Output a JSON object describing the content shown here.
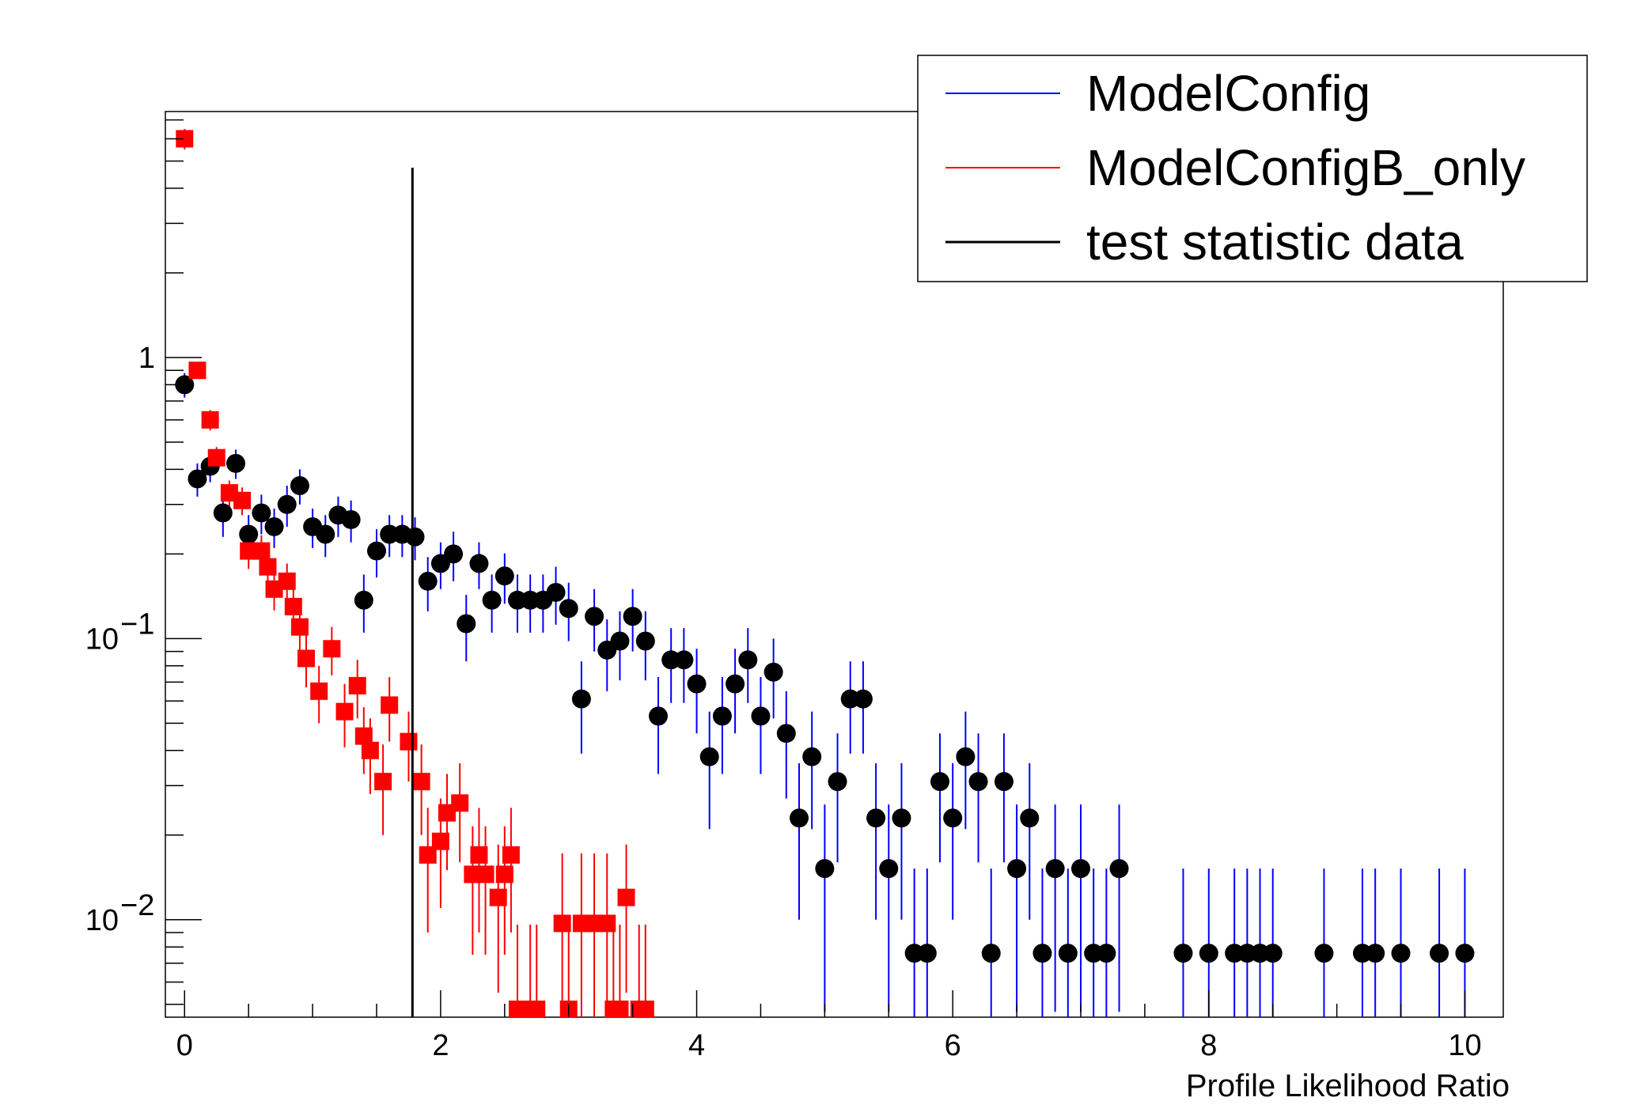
{
  "chart_data": {
    "type": "scatter",
    "title": "",
    "xlabel": "Profile Likelihood Ratio",
    "ylabel": "",
    "xlim": [
      -0.15,
      10.3
    ],
    "ylim": [
      0.0045,
      7.5
    ],
    "yscale": "log",
    "grid": false,
    "legend_position": "top-right",
    "x_ticks": [
      "0",
      "2",
      "4",
      "6",
      "8",
      "10"
    ],
    "y_ticks": [
      {
        "value": 0.01,
        "base": "10",
        "exp": "−2"
      },
      {
        "value": 0.1,
        "base": "10",
        "exp": "−1"
      },
      {
        "value": 1,
        "base": "1",
        "exp": ""
      }
    ],
    "legend": [
      {
        "name": "ModelConfig",
        "color": "#0000ff"
      },
      {
        "name": "ModelConfigB_only",
        "color": "#ff0000"
      },
      {
        "name": "test statistic data",
        "color": "#000000"
      }
    ],
    "test_statistic_data": 1.78,
    "series": [
      {
        "name": "ModelConfig",
        "marker": "circle",
        "marker_color": "#000000",
        "error_color": "#0000ff",
        "x": [
          0.0,
          0.1,
          0.2,
          0.3,
          0.4,
          0.5,
          0.6,
          0.7,
          0.8,
          0.9,
          1.0,
          1.1,
          1.2,
          1.3,
          1.4,
          1.5,
          1.6,
          1.7,
          1.8,
          1.9,
          2.0,
          2.1,
          2.2,
          2.3,
          2.4,
          2.5,
          2.6,
          2.7,
          2.8,
          2.9,
          3.0,
          3.1,
          3.2,
          3.3,
          3.4,
          3.5,
          3.6,
          3.7,
          3.8,
          3.9,
          4.0,
          4.1,
          4.2,
          4.3,
          4.4,
          4.5,
          4.6,
          4.7,
          4.8,
          4.9,
          5.0,
          5.1,
          5.2,
          5.3,
          5.4,
          5.5,
          5.6,
          5.7,
          5.8,
          5.9,
          6.0,
          6.1,
          6.2,
          6.3,
          6.4,
          6.5,
          6.6,
          6.7,
          6.8,
          6.9,
          7.0,
          7.1,
          7.2,
          7.3,
          7.8,
          8.0,
          8.2,
          8.3,
          8.4,
          8.5,
          8.9,
          9.2,
          9.3,
          9.5,
          9.8,
          10.0
        ],
        "y": [
          0.8,
          0.37,
          0.41,
          0.28,
          0.42,
          0.235,
          0.28,
          0.25,
          0.3,
          0.35,
          0.25,
          0.235,
          0.275,
          0.265,
          0.137,
          0.205,
          0.235,
          0.235,
          0.23,
          0.16,
          0.185,
          0.2,
          0.113,
          0.185,
          0.137,
          0.167,
          0.137,
          0.137,
          0.137,
          0.146,
          0.128,
          0.061,
          0.12,
          0.091,
          0.098,
          0.12,
          0.098,
          0.053,
          0.084,
          0.084,
          0.069,
          0.038,
          0.053,
          0.069,
          0.084,
          0.053,
          0.076,
          0.046,
          0.023,
          0.038,
          0.0152,
          0.031,
          0.061,
          0.061,
          0.023,
          0.0152,
          0.023,
          0.0076,
          0.0076,
          0.031,
          0.023,
          0.038,
          0.031,
          0.0076,
          0.031,
          0.0152,
          0.023,
          0.0076,
          0.0152,
          0.0076,
          0.0152,
          0.0076,
          0.0076,
          0.0152,
          0.0076,
          0.0076,
          0.0076,
          0.0076,
          0.0076,
          0.0076,
          0.0076,
          0.0076,
          0.0076,
          0.0076,
          0.0076,
          0.0076
        ],
        "yerr_low": [
          0.08,
          0.05,
          0.05,
          0.05,
          0.05,
          0.04,
          0.045,
          0.04,
          0.05,
          0.05,
          0.04,
          0.04,
          0.045,
          0.045,
          0.032,
          0.04,
          0.04,
          0.04,
          0.04,
          0.035,
          0.035,
          0.04,
          0.03,
          0.035,
          0.032,
          0.034,
          0.032,
          0.032,
          0.032,
          0.034,
          0.03,
          0.022,
          0.03,
          0.026,
          0.027,
          0.03,
          0.027,
          0.02,
          0.025,
          0.025,
          0.023,
          0.017,
          0.02,
          0.023,
          0.025,
          0.02,
          0.024,
          0.019,
          0.013,
          0.017,
          0.0105,
          0.015,
          0.022,
          0.022,
          0.013,
          0.0105,
          0.013,
          0.0072,
          0.0072,
          0.015,
          0.013,
          0.017,
          0.015,
          0.0072,
          0.015,
          0.0105,
          0.013,
          0.0072,
          0.0105,
          0.0072,
          0.0105,
          0.0072,
          0.0072,
          0.0105,
          0.0072,
          0.0072,
          0.0072,
          0.0072,
          0.0072,
          0.0072,
          0.0072,
          0.0072,
          0.0072,
          0.0072,
          0.0072,
          0.0072
        ],
        "yerr_high": [
          0.08,
          0.05,
          0.05,
          0.05,
          0.05,
          0.04,
          0.045,
          0.04,
          0.05,
          0.05,
          0.04,
          0.04,
          0.045,
          0.045,
          0.032,
          0.04,
          0.04,
          0.04,
          0.04,
          0.035,
          0.035,
          0.04,
          0.03,
          0.035,
          0.032,
          0.034,
          0.032,
          0.032,
          0.032,
          0.034,
          0.03,
          0.022,
          0.03,
          0.026,
          0.027,
          0.03,
          0.027,
          0.02,
          0.025,
          0.025,
          0.023,
          0.017,
          0.02,
          0.023,
          0.025,
          0.02,
          0.024,
          0.019,
          0.013,
          0.017,
          0.0105,
          0.015,
          0.022,
          0.022,
          0.013,
          0.0105,
          0.013,
          0.0076,
          0.0076,
          0.015,
          0.013,
          0.017,
          0.015,
          0.0076,
          0.015,
          0.0105,
          0.013,
          0.0076,
          0.0105,
          0.0076,
          0.0105,
          0.0076,
          0.0076,
          0.0105,
          0.0076,
          0.0076,
          0.0076,
          0.0076,
          0.0076,
          0.0076,
          0.0076,
          0.0076,
          0.0076,
          0.0076,
          0.0076,
          0.0076
        ]
      },
      {
        "name": "ModelConfigB_only",
        "marker": "square",
        "marker_color": "#ff0000",
        "error_color": "#ff0000",
        "x": [
          0.0,
          0.1,
          0.2,
          0.25,
          0.35,
          0.45,
          0.5,
          0.6,
          0.65,
          0.7,
          0.8,
          0.85,
          0.9,
          0.95,
          1.05,
          1.15,
          1.25,
          1.35,
          1.4,
          1.45,
          1.55,
          1.6,
          1.75,
          1.85,
          1.9,
          2.0,
          2.05,
          2.15,
          2.25,
          2.3,
          2.35,
          2.45,
          2.5,
          2.55,
          2.6,
          2.7,
          2.75,
          2.95,
          3.0,
          3.1,
          3.2,
          3.3,
          3.35,
          3.4,
          3.45,
          3.55,
          3.6
        ],
        "y": [
          6.0,
          0.9,
          0.6,
          0.44,
          0.33,
          0.31,
          0.205,
          0.205,
          0.18,
          0.15,
          0.16,
          0.13,
          0.11,
          0.085,
          0.065,
          0.092,
          0.055,
          0.068,
          0.045,
          0.04,
          0.031,
          0.058,
          0.043,
          0.031,
          0.017,
          0.019,
          0.024,
          0.026,
          0.0145,
          0.017,
          0.0145,
          0.012,
          0.0145,
          0.017,
          0.0048,
          0.0048,
          0.0048,
          0.0097,
          0.0048,
          0.0097,
          0.0097,
          0.0097,
          0.0048,
          0.0048,
          0.012,
          0.0048,
          0.0048
        ],
        "yerr_low": [
          0.5,
          0.06,
          0.05,
          0.04,
          0.035,
          0.035,
          0.028,
          0.028,
          0.026,
          0.024,
          0.025,
          0.022,
          0.02,
          0.018,
          0.015,
          0.018,
          0.014,
          0.016,
          0.012,
          0.012,
          0.011,
          0.015,
          0.012,
          0.011,
          0.008,
          0.008,
          0.009,
          0.01,
          0.007,
          0.008,
          0.007,
          0.0065,
          0.007,
          0.008,
          0.0045,
          0.0045,
          0.0045,
          0.006,
          0.0045,
          0.006,
          0.006,
          0.006,
          0.0045,
          0.0045,
          0.0065,
          0.0045,
          0.0045
        ],
        "yerr_high": [
          0.5,
          0.06,
          0.05,
          0.04,
          0.035,
          0.035,
          0.028,
          0.028,
          0.026,
          0.024,
          0.025,
          0.022,
          0.02,
          0.018,
          0.015,
          0.018,
          0.014,
          0.016,
          0.012,
          0.012,
          0.011,
          0.015,
          0.012,
          0.011,
          0.008,
          0.008,
          0.009,
          0.01,
          0.007,
          0.008,
          0.007,
          0.0065,
          0.007,
          0.008,
          0.0048,
          0.0048,
          0.0048,
          0.0075,
          0.0048,
          0.0075,
          0.0075,
          0.0075,
          0.0048,
          0.0048,
          0.0065,
          0.0048,
          0.0048
        ]
      }
    ]
  }
}
